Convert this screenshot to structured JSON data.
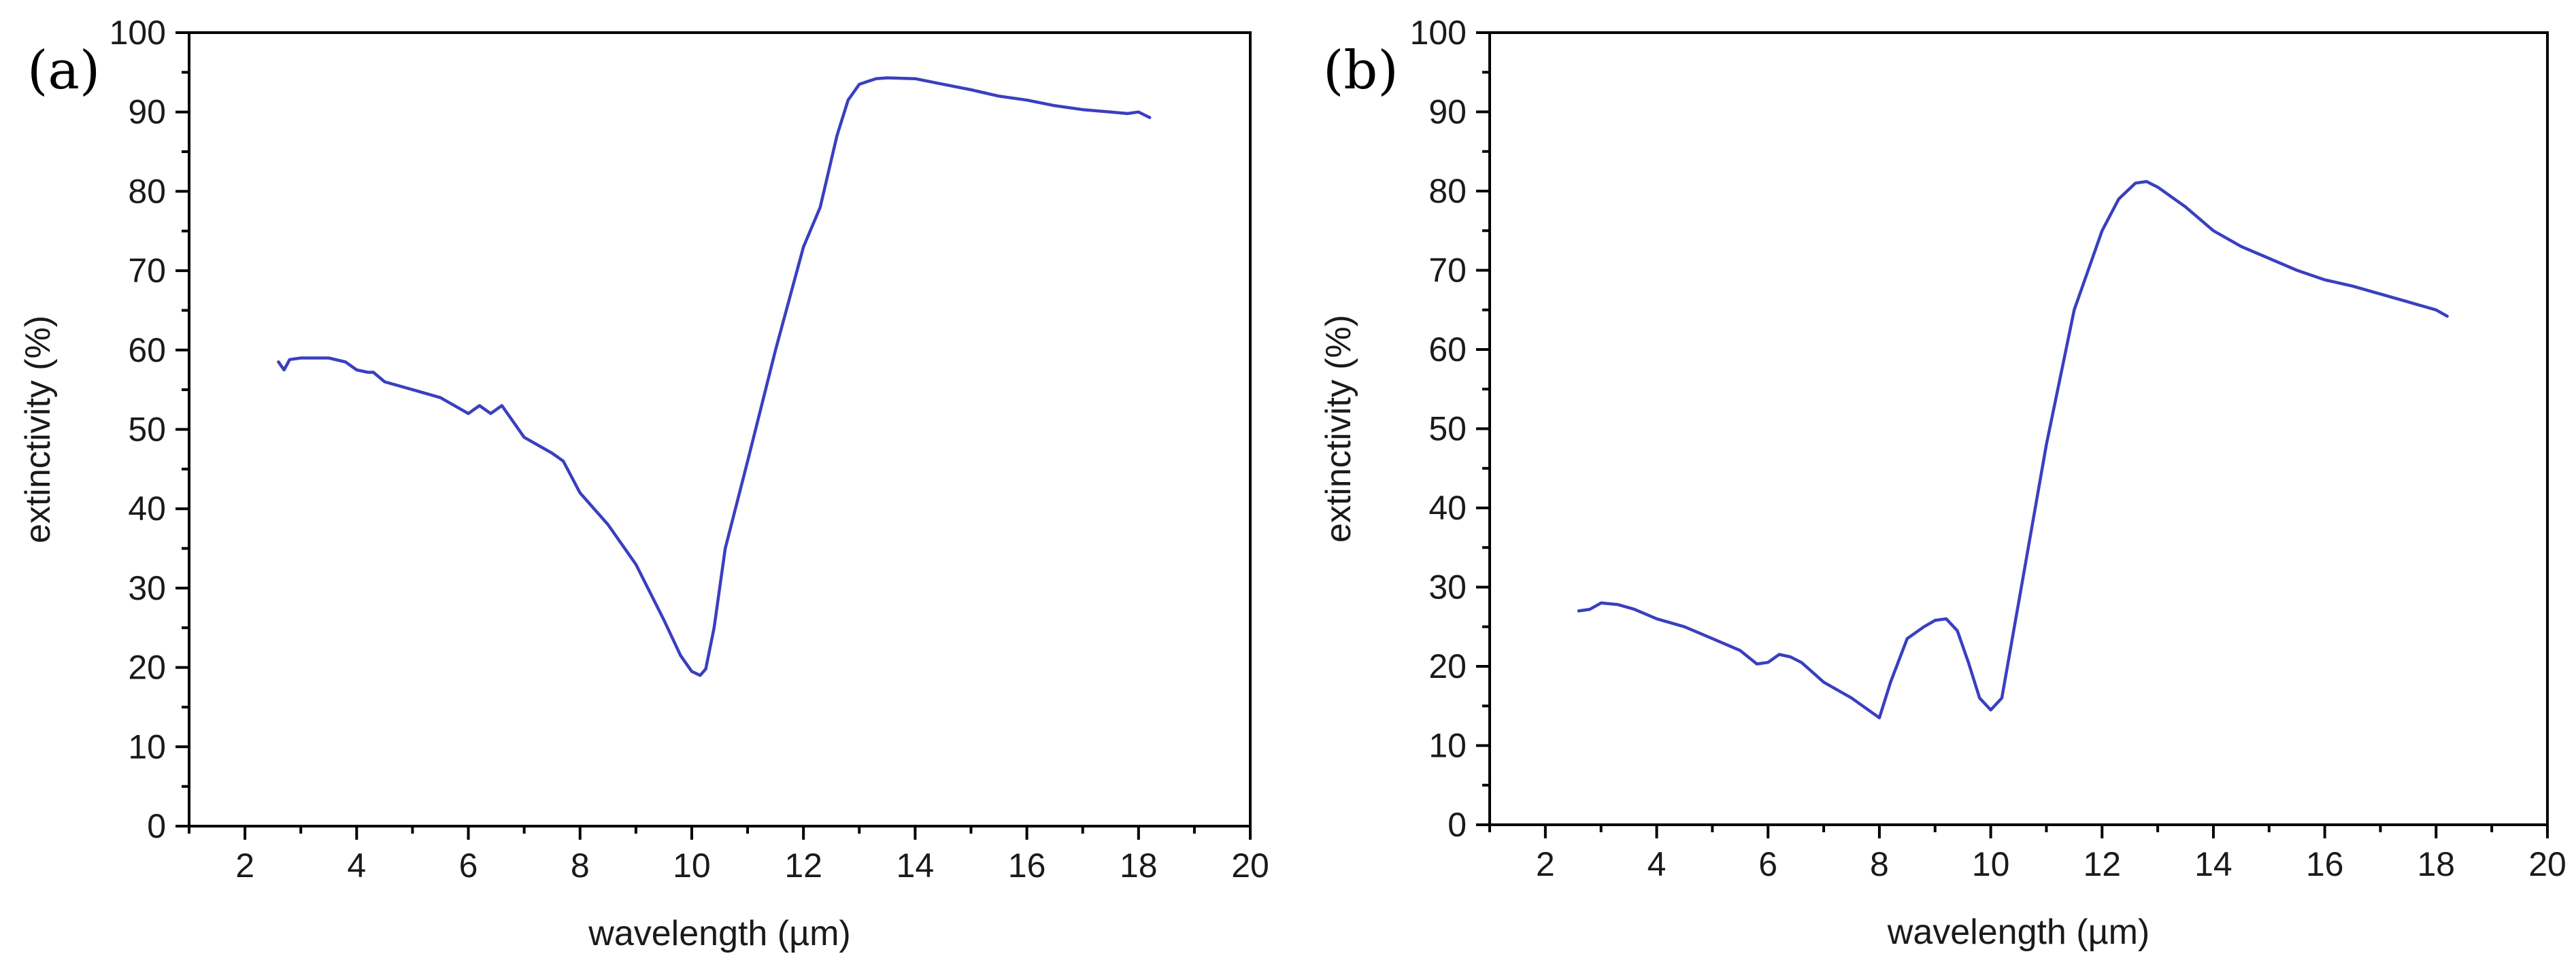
{
  "series_color": "#3a3fbf",
  "chart_data": [
    {
      "type": "line",
      "panel_label": "(a)",
      "xlabel": "wavelength (µm)",
      "ylabel": "extinctivity (%)",
      "xlim": [
        1,
        20
      ],
      "ylim": [
        0,
        100
      ],
      "x_ticks": [
        2,
        4,
        6,
        8,
        10,
        12,
        14,
        16,
        18,
        20
      ],
      "y_ticks": [
        0,
        10,
        20,
        30,
        40,
        50,
        60,
        70,
        80,
        90,
        100
      ],
      "series": [
        {
          "name": "extinctivity",
          "x": [
            2.6,
            2.7,
            2.8,
            3.0,
            3.2,
            3.5,
            3.8,
            4.0,
            4.2,
            4.3,
            4.5,
            5.0,
            5.5,
            6.0,
            6.2,
            6.4,
            6.6,
            6.8,
            7.0,
            7.5,
            7.7,
            8.0,
            8.5,
            9.0,
            9.5,
            9.8,
            10.0,
            10.15,
            10.25,
            10.4,
            10.6,
            11.0,
            11.5,
            12.0,
            12.3,
            12.6,
            12.8,
            13.0,
            13.3,
            13.5,
            14.0,
            14.5,
            15.0,
            15.5,
            16.0,
            16.5,
            17.0,
            17.5,
            17.8,
            18.0,
            18.2
          ],
          "values": [
            58.5,
            57.5,
            58.8,
            59,
            59,
            59,
            58.5,
            57.5,
            57.2,
            57.2,
            56.0,
            55.0,
            54.0,
            52.0,
            53.0,
            52.0,
            53.0,
            51.0,
            49.0,
            47.0,
            46.0,
            42.0,
            38.0,
            33.0,
            26.0,
            21.5,
            19.5,
            19.0,
            19.8,
            25,
            35,
            46,
            60,
            73,
            78,
            87,
            91.5,
            93.5,
            94.2,
            94.3,
            94.2,
            93.5,
            92.8,
            92.0,
            91.5,
            90.8,
            90.3,
            90.0,
            89.8,
            90.0,
            89.3
          ]
        }
      ]
    },
    {
      "type": "line",
      "panel_label": "(b)",
      "xlabel": "wavelength (µm)",
      "ylabel": "extinctivity (%)",
      "xlim": [
        1,
        20
      ],
      "ylim": [
        0,
        100
      ],
      "x_ticks": [
        2,
        4,
        6,
        8,
        10,
        12,
        14,
        16,
        18,
        20
      ],
      "y_ticks": [
        0,
        10,
        20,
        30,
        40,
        50,
        60,
        70,
        80,
        90,
        100
      ],
      "series": [
        {
          "name": "extinctivity",
          "x": [
            2.6,
            2.8,
            3.0,
            3.3,
            3.6,
            4.0,
            4.5,
            5.0,
            5.5,
            5.8,
            6.0,
            6.2,
            6.4,
            6.6,
            7.0,
            7.5,
            7.8,
            8.0,
            8.2,
            8.5,
            8.8,
            9.0,
            9.2,
            9.4,
            9.6,
            9.8,
            10.0,
            10.2,
            10.5,
            11.0,
            11.5,
            12.0,
            12.3,
            12.6,
            12.8,
            13.0,
            13.5,
            14.0,
            14.5,
            15.0,
            15.5,
            16.0,
            16.5,
            17.0,
            17.5,
            18.0,
            18.2
          ],
          "values": [
            27,
            27.2,
            28,
            27.8,
            27.2,
            26,
            25,
            23.5,
            22,
            20.3,
            20.5,
            21.5,
            21.2,
            20.5,
            18,
            16,
            14.5,
            13.5,
            18,
            23.5,
            25,
            25.8,
            26,
            24.5,
            20.5,
            16,
            14.5,
            16,
            28,
            48,
            65,
            75,
            79,
            81,
            81.2,
            80.5,
            78,
            75,
            73,
            71.5,
            70,
            68.8,
            68,
            67,
            66,
            65,
            64.2
          ]
        }
      ]
    }
  ]
}
